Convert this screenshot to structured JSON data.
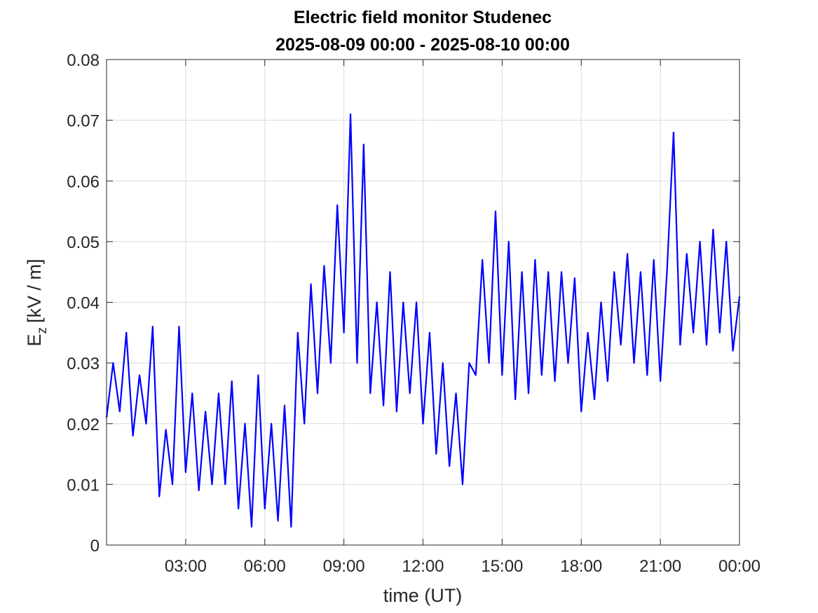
{
  "chart_data": {
    "type": "line",
    "title": "Electric field monitor Studenec",
    "subtitle": "2025-08-09 00:00 - 2025-08-10 00:00",
    "xlabel": "time (UT)",
    "ylabel": [
      "E",
      "z",
      "[kV / m]"
    ],
    "xlim": [
      0,
      24
    ],
    "xticks": [
      {
        "value": 3,
        "label": "03:00"
      },
      {
        "value": 6,
        "label": "06:00"
      },
      {
        "value": 9,
        "label": "09:00"
      },
      {
        "value": 12,
        "label": "12:00"
      },
      {
        "value": 15,
        "label": "15:00"
      },
      {
        "value": 18,
        "label": "18:00"
      },
      {
        "value": 21,
        "label": "21:00"
      },
      {
        "value": 24,
        "label": "00:00"
      }
    ],
    "ylim": [
      0,
      0.08
    ],
    "yticks": [
      0,
      0.01,
      0.02,
      0.03,
      0.04,
      0.05,
      0.06,
      0.07,
      0.08
    ],
    "grid": true,
    "x": [
      0,
      0.25,
      0.5,
      0.75,
      1,
      1.25,
      1.5,
      1.75,
      2,
      2.25,
      2.5,
      2.75,
      3,
      3.25,
      3.5,
      3.75,
      4,
      4.25,
      4.5,
      4.75,
      5,
      5.25,
      5.5,
      5.75,
      6,
      6.25,
      6.5,
      6.75,
      7,
      7.25,
      7.5,
      7.75,
      8,
      8.25,
      8.5,
      8.75,
      9,
      9.25,
      9.5,
      9.75,
      10,
      10.25,
      10.5,
      10.75,
      11,
      11.25,
      11.5,
      11.75,
      12,
      12.25,
      12.5,
      12.75,
      13,
      13.25,
      13.5,
      13.75,
      14,
      14.25,
      14.5,
      14.75,
      15,
      15.25,
      15.5,
      15.75,
      16,
      16.25,
      16.5,
      16.75,
      17,
      17.25,
      17.5,
      17.75,
      18,
      18.25,
      18.5,
      18.75,
      19,
      19.25,
      19.5,
      19.75,
      20,
      20.25,
      20.5,
      20.75,
      21,
      21.25,
      21.5,
      21.75,
      22,
      22.25,
      22.5,
      22.75,
      23,
      23.25,
      23.5,
      23.75,
      24
    ],
    "series": [
      {
        "color": "#0000ff",
        "values": [
          0.021,
          0.03,
          0.022,
          0.035,
          0.018,
          0.028,
          0.02,
          0.036,
          0.008,
          0.019,
          0.01,
          0.036,
          0.012,
          0.025,
          0.009,
          0.022,
          0.01,
          0.025,
          0.01,
          0.027,
          0.006,
          0.02,
          0.003,
          0.028,
          0.006,
          0.02,
          0.004,
          0.023,
          0.003,
          0.035,
          0.02,
          0.043,
          0.025,
          0.046,
          0.03,
          0.056,
          0.035,
          0.071,
          0.03,
          0.066,
          0.025,
          0.04,
          0.023,
          0.045,
          0.022,
          0.04,
          0.025,
          0.04,
          0.02,
          0.035,
          0.015,
          0.03,
          0.013,
          0.025,
          0.01,
          0.03,
          0.028,
          0.047,
          0.03,
          0.055,
          0.028,
          0.05,
          0.024,
          0.045,
          0.025,
          0.047,
          0.028,
          0.045,
          0.027,
          0.045,
          0.03,
          0.044,
          0.022,
          0.035,
          0.024,
          0.04,
          0.027,
          0.045,
          0.033,
          0.048,
          0.03,
          0.045,
          0.028,
          0.047,
          0.027,
          0.045,
          0.068,
          0.033,
          0.048,
          0.035,
          0.05,
          0.033,
          0.052,
          0.035,
          0.05,
          0.032,
          0.041
        ]
      }
    ]
  }
}
